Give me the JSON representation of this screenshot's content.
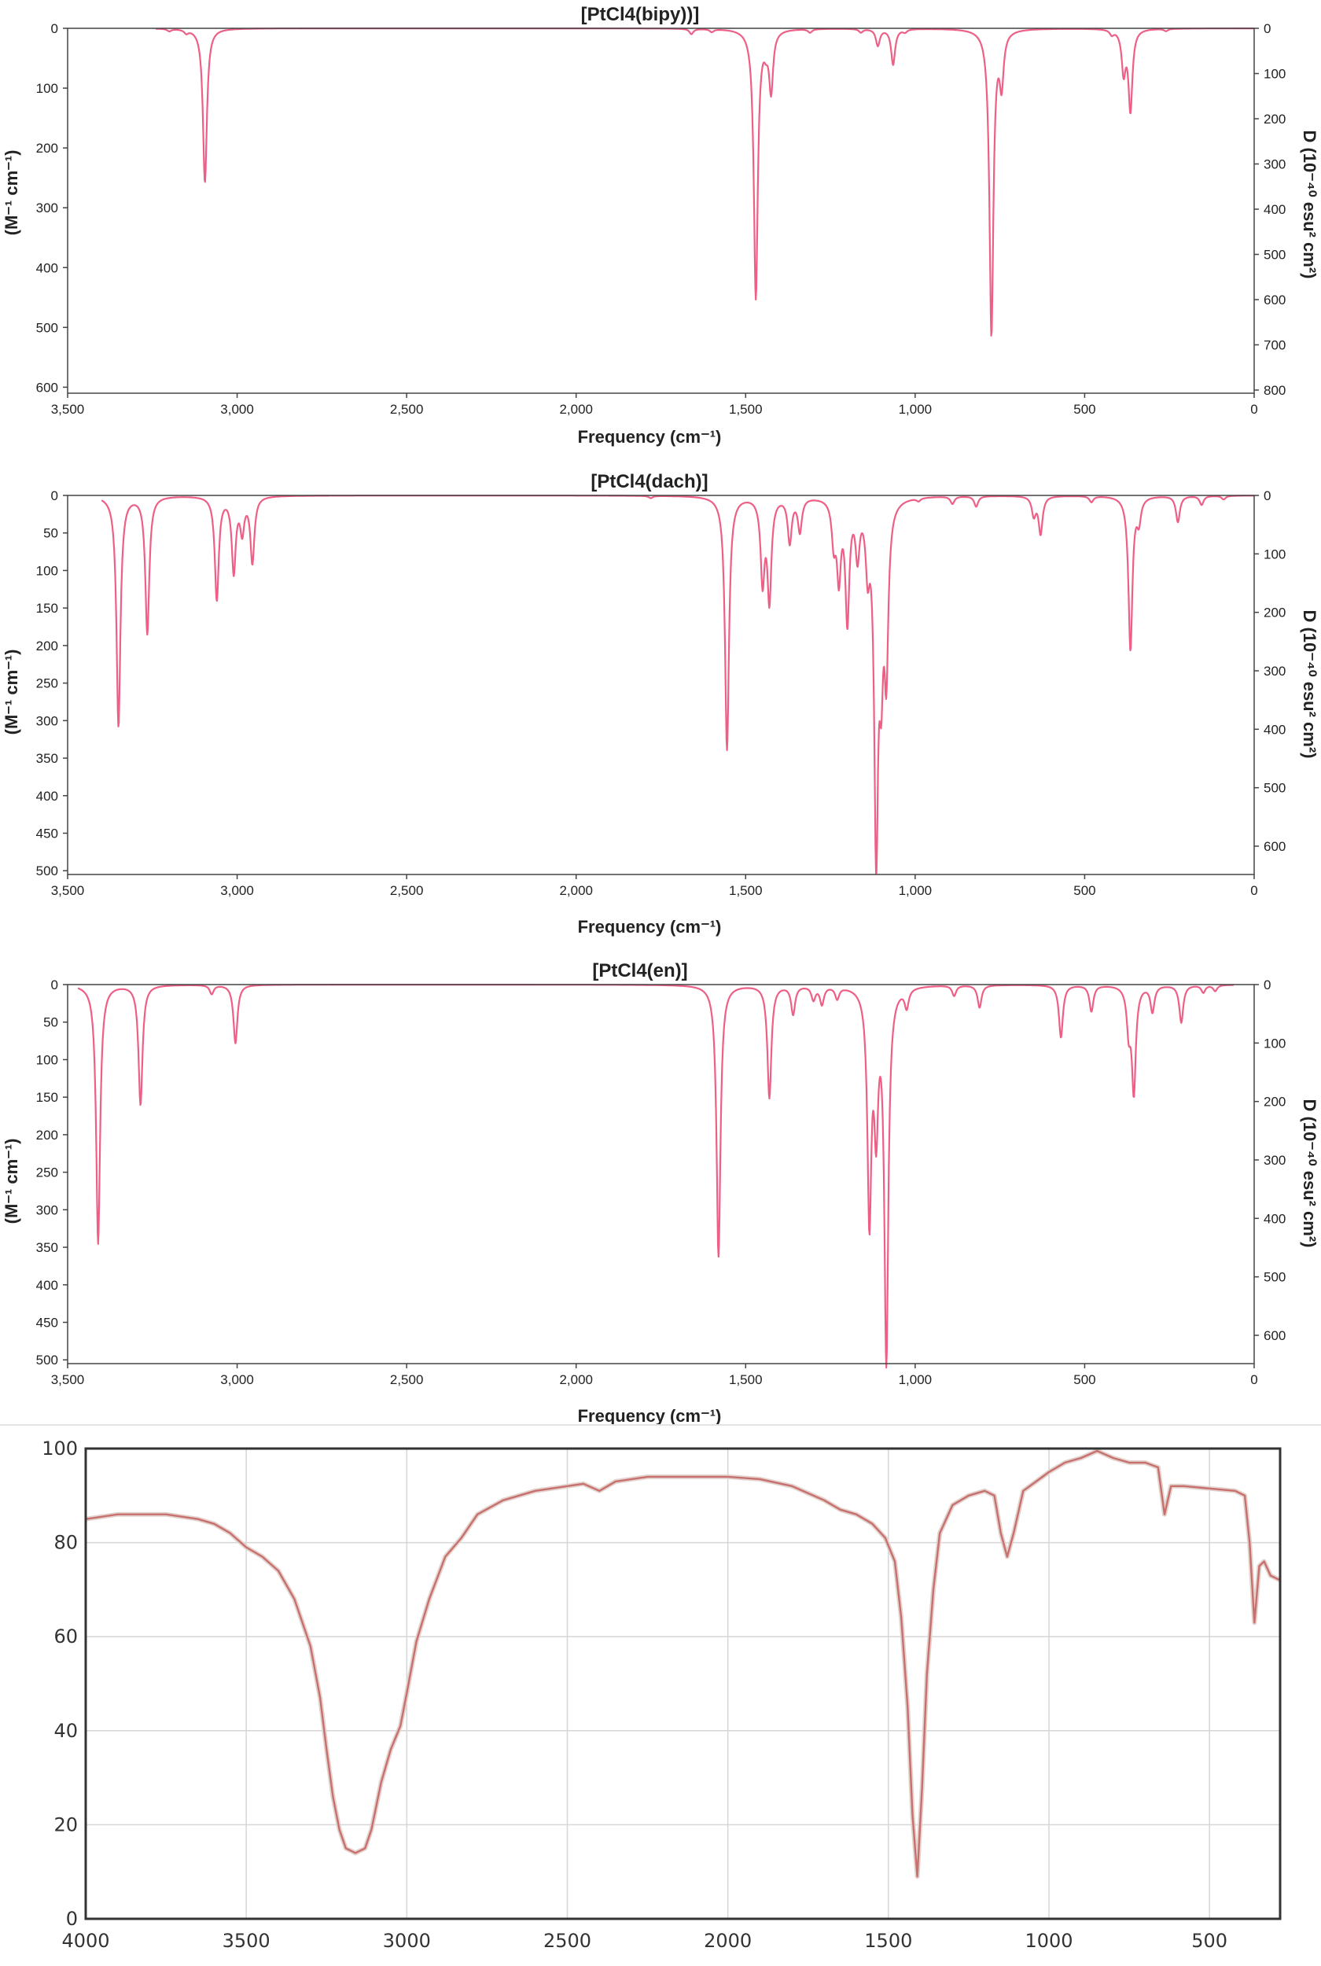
{
  "chart_data": [
    {
      "type": "line",
      "title": "[PtCl4(bipy))]",
      "xlabel": "Frequency (cm⁻¹)",
      "ylabel_left": "(M⁻¹ cm⁻¹)",
      "ylabel_right": "D (10⁻⁴⁰ esu² cm²)",
      "xlim": [
        3500,
        0
      ],
      "x_ticks": [
        "3,500",
        "3,000",
        "2,500",
        "2,000",
        "1,500",
        "1,000",
        "500",
        "0"
      ],
      "y_left_ticks": [
        "0",
        "100",
        "200",
        "300",
        "400",
        "500",
        "600"
      ],
      "y_right_ticks": [
        "0",
        "100",
        "200",
        "300",
        "400",
        "500",
        "600",
        "700",
        "800"
      ],
      "ylim_left": [
        0,
        610
      ],
      "x_start": 3240,
      "x_end": 0,
      "peaks": [
        {
          "x": 3200,
          "y": 4
        },
        {
          "x": 3150,
          "y": 6
        },
        {
          "x": 3095,
          "y": 258
        },
        {
          "x": 1660,
          "y": 9
        },
        {
          "x": 1600,
          "y": 5
        },
        {
          "x": 1470,
          "y": 450
        },
        {
          "x": 1440,
          "y": 20
        },
        {
          "x": 1425,
          "y": 100
        },
        {
          "x": 1310,
          "y": 6
        },
        {
          "x": 1160,
          "y": 6
        },
        {
          "x": 1110,
          "y": 28
        },
        {
          "x": 1065,
          "y": 60
        },
        {
          "x": 1030,
          "y": 5
        },
        {
          "x": 775,
          "y": 512
        },
        {
          "x": 745,
          "y": 85
        },
        {
          "x": 420,
          "y": 8
        },
        {
          "x": 385,
          "y": 70
        },
        {
          "x": 365,
          "y": 135
        },
        {
          "x": 260,
          "y": 4
        }
      ]
    },
    {
      "type": "line",
      "title": "[PtCl4(dach)]",
      "xlabel": "Frequency (cm⁻¹)",
      "ylabel_left": "(M⁻¹ cm⁻¹)",
      "ylabel_right": "D (10⁻⁴⁰ esu² cm²)",
      "xlim": [
        3500,
        0
      ],
      "x_ticks": [
        "3,500",
        "3,000",
        "2,500",
        "2,000",
        "1,500",
        "1,000",
        "500",
        "0"
      ],
      "y_left_ticks": [
        "0",
        "50",
        "100",
        "150",
        "200",
        "250",
        "300",
        "350",
        "400",
        "450",
        "500"
      ],
      "y_right_ticks": [
        "0",
        "100",
        "200",
        "300",
        "400",
        "500",
        "600"
      ],
      "ylim_left": [
        0,
        505
      ],
      "x_start": 3400,
      "x_end": 0,
      "peaks": [
        {
          "x": 3350,
          "y": 308
        },
        {
          "x": 3265,
          "y": 183
        },
        {
          "x": 3060,
          "y": 138
        },
        {
          "x": 3010,
          "y": 100
        },
        {
          "x": 2985,
          "y": 45
        },
        {
          "x": 2955,
          "y": 88
        },
        {
          "x": 1780,
          "y": 3
        },
        {
          "x": 1555,
          "y": 338
        },
        {
          "x": 1450,
          "y": 110
        },
        {
          "x": 1430,
          "y": 135
        },
        {
          "x": 1370,
          "y": 60
        },
        {
          "x": 1340,
          "y": 45
        },
        {
          "x": 1240,
          "y": 55
        },
        {
          "x": 1225,
          "y": 100
        },
        {
          "x": 1200,
          "y": 160
        },
        {
          "x": 1170,
          "y": 70
        },
        {
          "x": 1140,
          "y": 80
        },
        {
          "x": 1115,
          "y": 455
        },
        {
          "x": 1100,
          "y": 185
        },
        {
          "x": 1085,
          "y": 210
        },
        {
          "x": 990,
          "y": 4
        },
        {
          "x": 890,
          "y": 10
        },
        {
          "x": 820,
          "y": 14
        },
        {
          "x": 650,
          "y": 25
        },
        {
          "x": 630,
          "y": 50
        },
        {
          "x": 480,
          "y": 8
        },
        {
          "x": 365,
          "y": 205
        },
        {
          "x": 340,
          "y": 30
        },
        {
          "x": 225,
          "y": 35
        },
        {
          "x": 155,
          "y": 12
        },
        {
          "x": 90,
          "y": 5
        }
      ]
    },
    {
      "type": "line",
      "title": "[PtCl4(en)]",
      "xlabel": "Frequency (cm⁻¹)",
      "ylabel_left": "(M⁻¹ cm⁻¹)",
      "ylabel_right": "D (10⁻⁴⁰ esu² cm²)",
      "xlim": [
        3500,
        0
      ],
      "x_ticks": [
        "3,500",
        "3,000",
        "2,500",
        "2,000",
        "1,500",
        "1,000",
        "500",
        "0"
      ],
      "y_left_ticks": [
        "0",
        "50",
        "100",
        "150",
        "200",
        "250",
        "300",
        "350",
        "400",
        "450",
        "500"
      ],
      "y_right_ticks": [
        "0",
        "100",
        "200",
        "300",
        "400",
        "500",
        "600"
      ],
      "ylim_left": [
        0,
        505
      ],
      "x_start": 3470,
      "x_end": 60,
      "peaks": [
        {
          "x": 3410,
          "y": 345
        },
        {
          "x": 3285,
          "y": 160
        },
        {
          "x": 3075,
          "y": 12
        },
        {
          "x": 3005,
          "y": 78
        },
        {
          "x": 1580,
          "y": 362
        },
        {
          "x": 1430,
          "y": 150
        },
        {
          "x": 1360,
          "y": 38
        },
        {
          "x": 1300,
          "y": 18
        },
        {
          "x": 1275,
          "y": 24
        },
        {
          "x": 1230,
          "y": 16
        },
        {
          "x": 1135,
          "y": 305
        },
        {
          "x": 1115,
          "y": 170
        },
        {
          "x": 1085,
          "y": 495
        },
        {
          "x": 1025,
          "y": 25
        },
        {
          "x": 885,
          "y": 14
        },
        {
          "x": 810,
          "y": 30
        },
        {
          "x": 570,
          "y": 70
        },
        {
          "x": 480,
          "y": 35
        },
        {
          "x": 370,
          "y": 55
        },
        {
          "x": 355,
          "y": 140
        },
        {
          "x": 300,
          "y": 35
        },
        {
          "x": 215,
          "y": 50
        },
        {
          "x": 150,
          "y": 10
        },
        {
          "x": 115,
          "y": 8
        }
      ]
    },
    {
      "type": "line",
      "xlim": [
        4000,
        280
      ],
      "ylim": [
        0,
        100
      ],
      "grid": true,
      "x_ticks": [
        "4000",
        "3500",
        "3000",
        "2500",
        "2000",
        "1500",
        "1000",
        "500"
      ],
      "y_ticks": [
        "0",
        "20",
        "40",
        "60",
        "80",
        "100"
      ],
      "points": [
        [
          4000,
          85
        ],
        [
          3950,
          85.5
        ],
        [
          3900,
          86
        ],
        [
          3850,
          86
        ],
        [
          3800,
          86
        ],
        [
          3750,
          86
        ],
        [
          3700,
          85.5
        ],
        [
          3650,
          85
        ],
        [
          3600,
          84
        ],
        [
          3550,
          82
        ],
        [
          3500,
          79
        ],
        [
          3450,
          77
        ],
        [
          3400,
          74
        ],
        [
          3350,
          68
        ],
        [
          3300,
          58
        ],
        [
          3270,
          47
        ],
        [
          3250,
          36
        ],
        [
          3230,
          26
        ],
        [
          3210,
          19
        ],
        [
          3190,
          15
        ],
        [
          3160,
          14
        ],
        [
          3130,
          15
        ],
        [
          3110,
          19
        ],
        [
          3080,
          29
        ],
        [
          3050,
          36
        ],
        [
          3020,
          41
        ],
        [
          3000,
          48
        ],
        [
          2970,
          59
        ],
        [
          2930,
          68
        ],
        [
          2880,
          77
        ],
        [
          2830,
          81
        ],
        [
          2780,
          86
        ],
        [
          2700,
          89
        ],
        [
          2600,
          91
        ],
        [
          2500,
          92
        ],
        [
          2450,
          92.5
        ],
        [
          2400,
          91
        ],
        [
          2350,
          93
        ],
        [
          2250,
          94
        ],
        [
          2150,
          94
        ],
        [
          2000,
          94
        ],
        [
          1900,
          93.5
        ],
        [
          1800,
          92
        ],
        [
          1700,
          89
        ],
        [
          1650,
          87
        ],
        [
          1600,
          86
        ],
        [
          1550,
          84
        ],
        [
          1510,
          81
        ],
        [
          1480,
          76
        ],
        [
          1460,
          64
        ],
        [
          1440,
          45
        ],
        [
          1425,
          22
        ],
        [
          1410,
          9
        ],
        [
          1395,
          28
        ],
        [
          1380,
          52
        ],
        [
          1360,
          70
        ],
        [
          1340,
          82
        ],
        [
          1300,
          88
        ],
        [
          1250,
          90
        ],
        [
          1200,
          91
        ],
        [
          1170,
          90
        ],
        [
          1150,
          82
        ],
        [
          1130,
          77
        ],
        [
          1110,
          82
        ],
        [
          1080,
          91
        ],
        [
          1040,
          93
        ],
        [
          1000,
          95
        ],
        [
          950,
          97
        ],
        [
          900,
          98
        ],
        [
          850,
          99.5
        ],
        [
          800,
          98
        ],
        [
          750,
          97
        ],
        [
          700,
          97
        ],
        [
          660,
          96
        ],
        [
          640,
          86
        ],
        [
          620,
          92
        ],
        [
          580,
          92
        ],
        [
          500,
          91.5
        ],
        [
          420,
          91
        ],
        [
          390,
          90
        ],
        [
          375,
          80
        ],
        [
          360,
          63
        ],
        [
          345,
          75
        ],
        [
          330,
          76
        ],
        [
          310,
          73
        ],
        [
          280,
          72
        ]
      ]
    }
  ]
}
